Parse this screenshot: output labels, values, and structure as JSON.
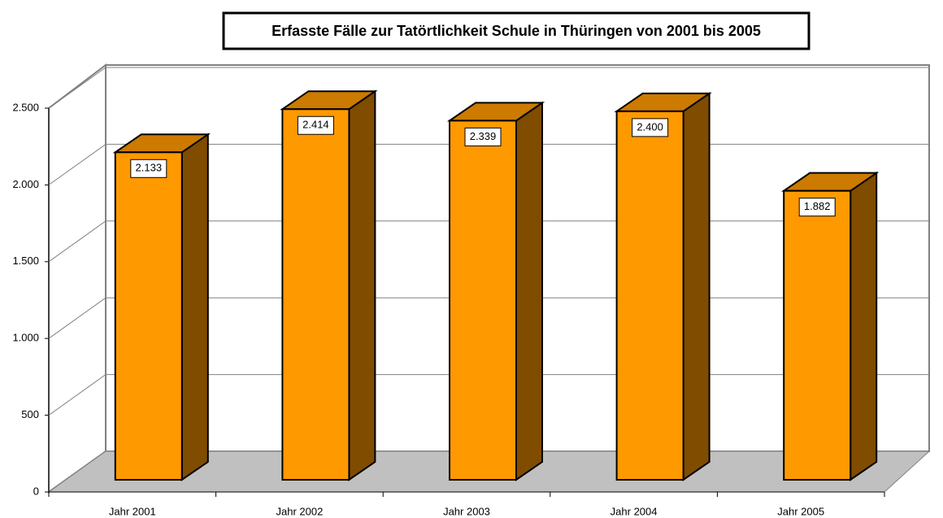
{
  "chart_data": {
    "type": "bar3d",
    "title": "Erfasste Fälle zur Tatörtlichkeit Schule in Thüringen von 2001 bis 2005",
    "categories": [
      "Jahr 2001",
      "Jahr 2002",
      "Jahr 2003",
      "Jahr 2004",
      "Jahr 2005"
    ],
    "values": [
      2133,
      2414,
      2339,
      2400,
      1882
    ],
    "value_labels": [
      "2.133",
      "2.414",
      "2.339",
      "2.400",
      "1.882"
    ],
    "color": "#ff9900",
    "ylim": [
      0,
      2500
    ],
    "yticks": [
      0,
      500,
      {
        "value": 1000,
        "label": "1.000"
      },
      {
        "value": 1500,
        "label": "1.500"
      },
      {
        "value": 2000,
        "label": "2.000"
      },
      {
        "value": 2500,
        "label": "2.500"
      }
    ],
    "grid": true
  }
}
